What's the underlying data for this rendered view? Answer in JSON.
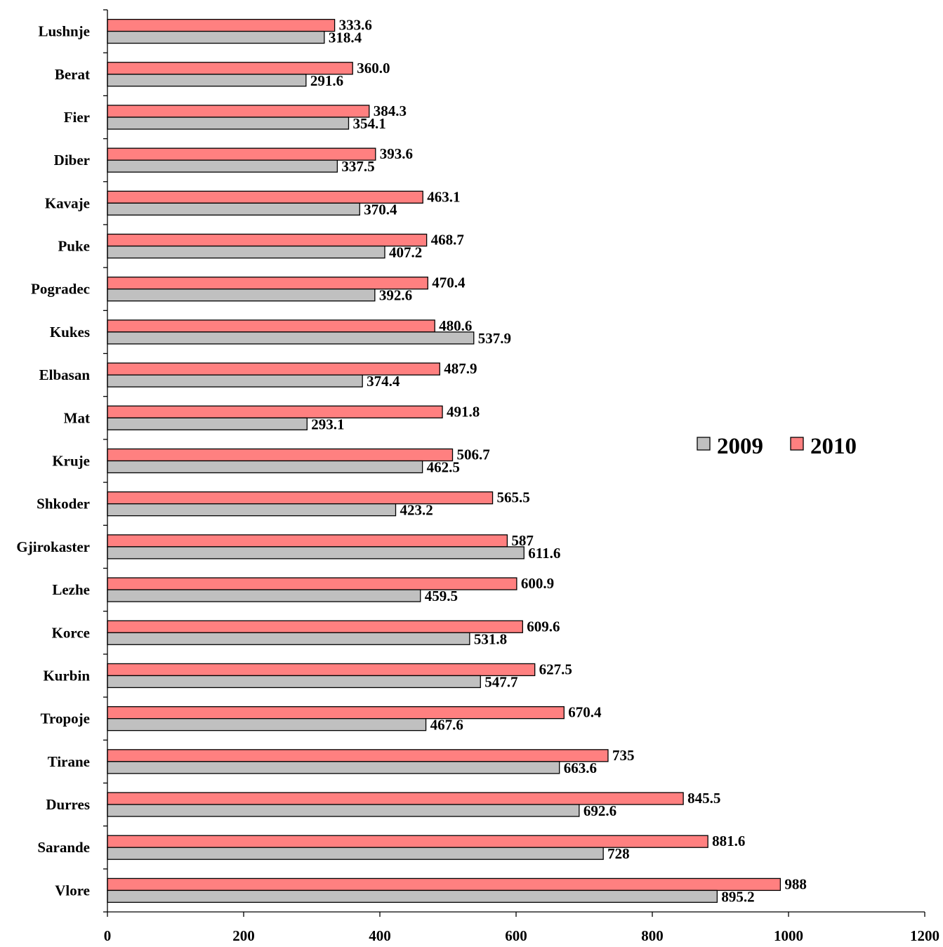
{
  "chart_data": {
    "type": "bar",
    "orientation": "horizontal",
    "categories": [
      "Lushnje",
      "Berat",
      "Fier",
      "Diber",
      "Kavaje",
      "Puke",
      "Pogradec",
      "Kukes",
      "Elbasan",
      "Mat",
      "Kruje",
      "Shkoder",
      "Gjirokaster",
      "Lezhe",
      "Korce",
      "Kurbin",
      "Tropoje",
      "Tirane",
      "Durres",
      "Sarande",
      "Vlore"
    ],
    "series": [
      {
        "name": "2010",
        "color": "#ff8080",
        "values": [
          333.6,
          360.0,
          384.3,
          393.6,
          463.1,
          468.7,
          470.4,
          480.6,
          487.9,
          491.8,
          506.7,
          565.5,
          587,
          600.9,
          609.6,
          627.5,
          670.4,
          735,
          845.5,
          881.6,
          988
        ],
        "labels": [
          "333.6",
          "360.0",
          "384.3",
          "393.6",
          "463.1",
          "468.7",
          "470.4",
          "480.6",
          "487.9",
          "491.8",
          "506.7",
          "565.5",
          "587",
          "600.9",
          "609.6",
          "627.5",
          "670.4",
          "735",
          "845.5",
          "881.6",
          "988"
        ]
      },
      {
        "name": "2009",
        "color": "#c0c0c0",
        "values": [
          318.4,
          291.6,
          354.1,
          337.5,
          370.4,
          407.2,
          392.6,
          537.9,
          374.4,
          293.1,
          462.5,
          423.2,
          611.6,
          459.5,
          531.8,
          547.7,
          467.6,
          663.6,
          692.6,
          728,
          895.2
        ],
        "labels": [
          "318.4",
          "291.6",
          "354.1",
          "337.5",
          "370.4",
          "407.2",
          "392.6",
          "537.9",
          "374.4",
          "293.1",
          "462.5",
          "423.2",
          "611.6",
          "459.5",
          "531.8",
          "547.7",
          "467.6",
          "663.6",
          "692.6",
          "728",
          "895.2"
        ]
      }
    ],
    "xlim": [
      0,
      1200
    ],
    "xticks": [
      "0",
      "200",
      "400",
      "600",
      "800",
      "1000",
      "1200"
    ],
    "legend": {
      "position": "right",
      "order": [
        "2009",
        "2010"
      ]
    },
    "grid": false,
    "title": "",
    "xlabel": "",
    "ylabel": ""
  }
}
